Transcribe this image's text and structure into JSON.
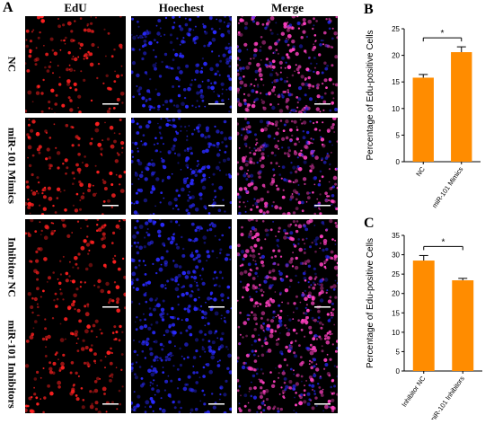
{
  "figure": {
    "panel_a_letter": "A",
    "panel_b_letter": "B",
    "panel_c_letter": "C",
    "columns": [
      "EdU",
      "Hoechest",
      "Merge"
    ],
    "rows": [
      "NC",
      "miR-101 Mimics",
      "Inhibitor NC",
      "miR-101 Inhibitors"
    ],
    "channel_colors": {
      "edu": "#ff2020",
      "hoechst": "#2a2aff",
      "merge": "#ff40c0",
      "background": "#000000"
    }
  },
  "chart_data": [
    {
      "type": "bar",
      "categories": [
        "NC",
        "miR-101 Mimics"
      ],
      "values": [
        15.8,
        20.6
      ],
      "errors": [
        0.6,
        1.0
      ],
      "ylabel": "Percentage of Edu-positive Cells",
      "ylim": [
        0,
        25
      ],
      "yticks": [
        0,
        5,
        10,
        15,
        20,
        25
      ],
      "significance": "*",
      "bar_color": "#ff8c00"
    },
    {
      "type": "bar",
      "categories": [
        "Inhibitor NC",
        "miR-101 Inhibitors"
      ],
      "values": [
        28.5,
        23.4
      ],
      "errors": [
        1.3,
        0.5
      ],
      "ylabel": "Percentage of Edu-positive Cells",
      "ylim": [
        0,
        35
      ],
      "yticks": [
        0,
        5,
        10,
        15,
        20,
        25,
        30,
        35
      ],
      "significance": "*",
      "bar_color": "#ff8c00"
    }
  ]
}
